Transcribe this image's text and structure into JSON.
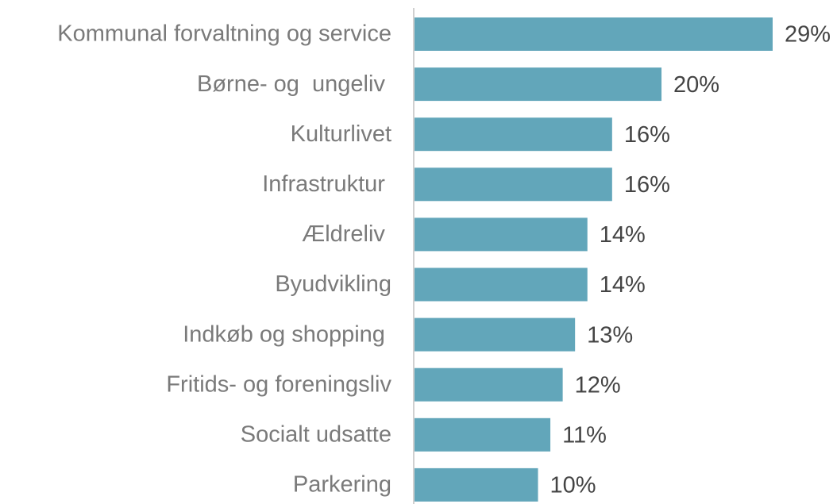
{
  "chart_data": {
    "type": "barh",
    "categories": [
      "Kommunal forvaltning og service",
      "Børne- og  ungeliv ",
      "Kulturlivet",
      "Infrastruktur ",
      "Ældreliv ",
      "Byudvikling",
      "Indkøb og shopping ",
      "Fritids- og foreningsliv",
      "Socialt udsatte",
      "Parkering"
    ],
    "values": [
      29,
      20,
      16,
      16,
      14,
      14,
      13,
      12,
      11,
      10
    ],
    "value_labels": [
      "29%",
      "20%",
      "16%",
      "16%",
      "14%",
      "14%",
      "13%",
      "12%",
      "11%",
      "10%"
    ],
    "color": "#62a6ba"
  }
}
